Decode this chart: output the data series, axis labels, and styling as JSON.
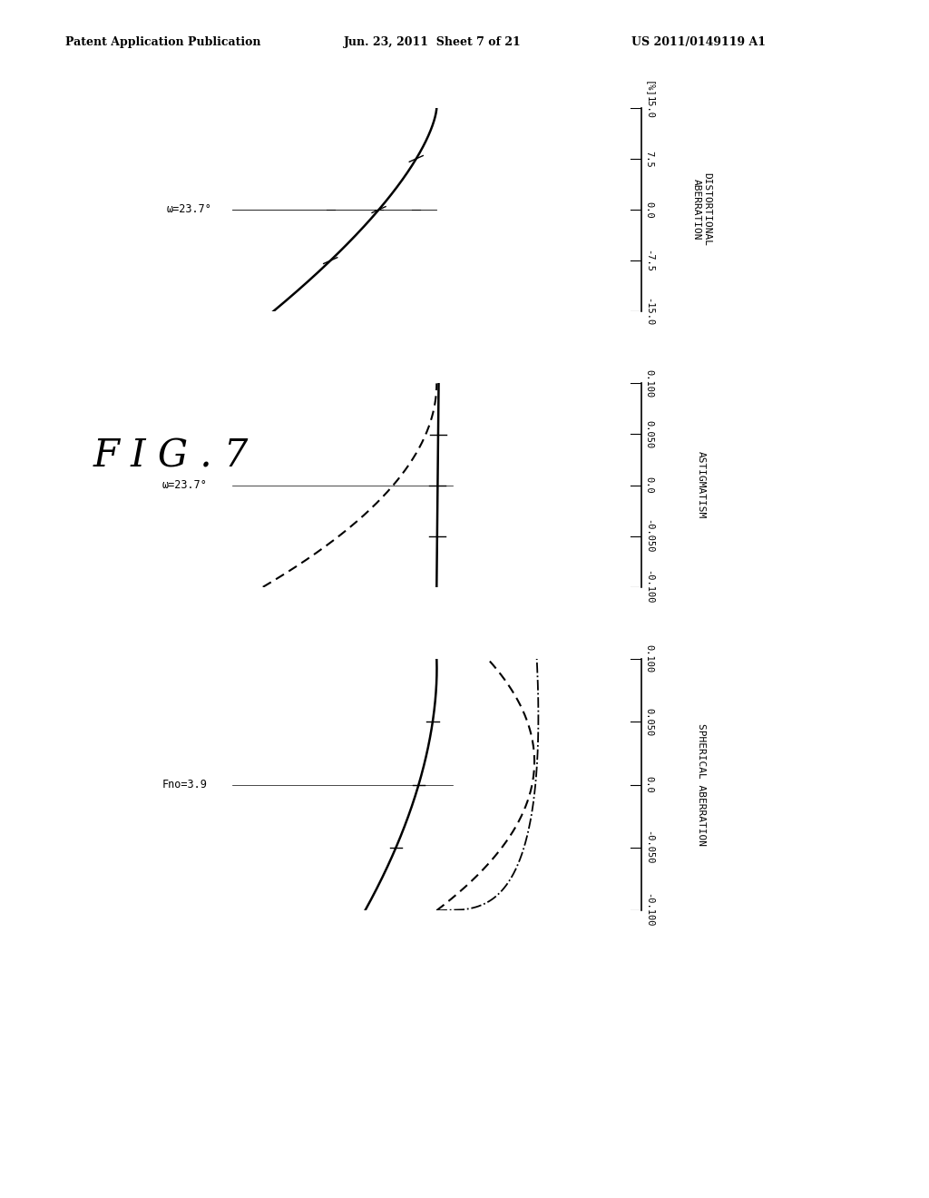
{
  "fig_label": "F I G . 7",
  "header_left": "Patent Application Publication",
  "header_mid": "Jun. 23, 2011  Sheet 7 of 21",
  "header_right": "US 2011/0149119 A1",
  "background_color": "#ffffff",
  "plots": [
    {
      "type": "distortional_aberration",
      "title": "DISTORTIONAL\nABERRATION",
      "unit_label": "[%]",
      "ylabel_label": "ω=23.7°",
      "xlim": [
        -15.0,
        15.0
      ],
      "ylim": [
        0.0,
        1.0
      ],
      "xticks": [
        -15.0,
        -7.5,
        0.0,
        7.5,
        15.0
      ],
      "xtick_labels": [
        "-15.0",
        "-7.5",
        "0.0",
        "7.5",
        "15.0"
      ]
    },
    {
      "type": "astigmatism",
      "title": "ASTIGMATISM",
      "unit_label": "",
      "ylabel_label": "ω=23.7°",
      "xlim": [
        -0.1,
        0.1
      ],
      "ylim": [
        0.0,
        1.0
      ],
      "xticks": [
        -0.1,
        -0.05,
        0.0,
        0.05,
        0.1
      ],
      "xtick_labels": [
        "-0.100",
        "-0.050",
        "0.0",
        "0.050",
        "0.100"
      ]
    },
    {
      "type": "spherical_aberration",
      "title": "SPHERICAL ABERRATION",
      "unit_label": "",
      "ylabel_label": "Fno=3.9",
      "xlim": [
        -0.1,
        0.1
      ],
      "ylim": [
        0.0,
        1.0
      ],
      "xticks": [
        -0.1,
        -0.05,
        0.0,
        0.05,
        0.1
      ],
      "xtick_labels": [
        "-0.100",
        "-0.050",
        "0.0",
        "0.050",
        "0.100"
      ]
    }
  ]
}
